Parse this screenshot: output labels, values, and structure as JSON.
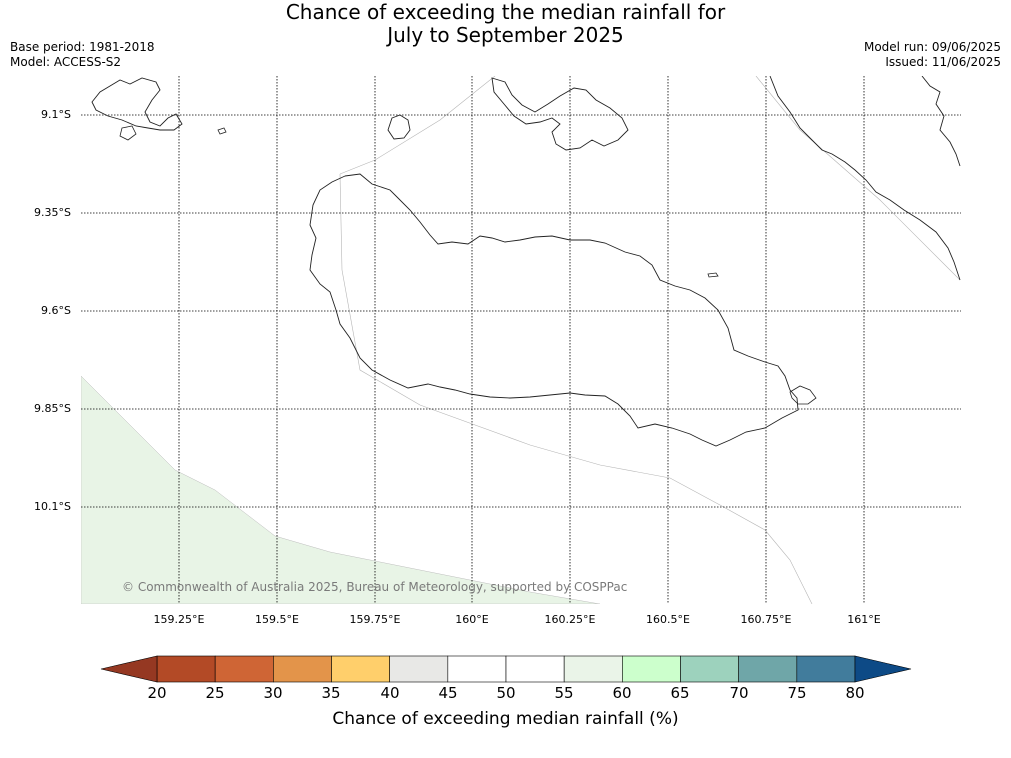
{
  "title": {
    "line1": "Chance of exceeding the median rainfall for",
    "line2": "July to September 2025"
  },
  "meta": {
    "base_period": "Base period: 1981-2018",
    "model": "Model: ACCESS-S2",
    "model_run": "Model run: 09/06/2025",
    "issued": "Issued: 11/06/2025"
  },
  "map": {
    "lat_labels": [
      "9.1°S",
      "9.35°S",
      "9.6°S",
      "9.85°S",
      "10.1°S"
    ],
    "lon_labels": [
      "159.25°E",
      "159.5°E",
      "159.75°E",
      "160°E",
      "160.25°E",
      "160.5°E",
      "160.75°E",
      "161°E"
    ],
    "shaded_region_color": "#e8f4e6",
    "copyright": "© Commonwealth of Australia 2025, Bureau of Meteorology, supported by COSPPac"
  },
  "colorbar": {
    "ticks": [
      "20",
      "25",
      "30",
      "35",
      "40",
      "45",
      "50",
      "55",
      "60",
      "65",
      "70",
      "75",
      "80"
    ],
    "under_color": "#953822",
    "over_color": "#0d4a86",
    "colors": [
      "#b34a26",
      "#cf6535",
      "#e3944a",
      "#ffcf6b",
      "#e8e8e6",
      "#ffffff",
      "#ffffff",
      "#eaf4e8",
      "#ccffcc",
      "#9dd2bd",
      "#6fa6a8",
      "#417c9c"
    ],
    "label": "Chance of exceeding median rainfall (%)"
  }
}
